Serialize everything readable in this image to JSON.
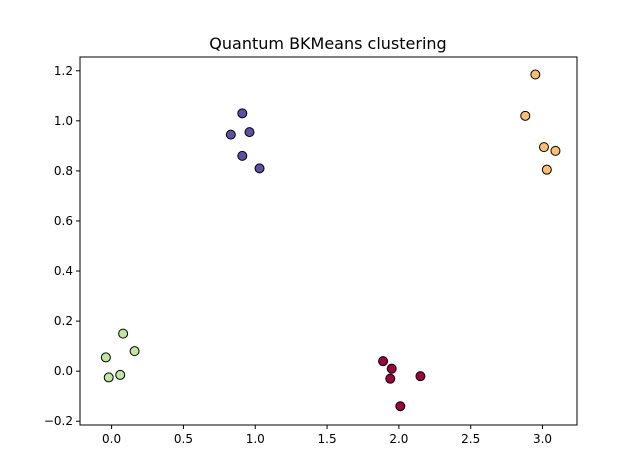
{
  "chart_data": {
    "type": "scatter",
    "title": "Quantum BKMeans clustering",
    "xlabel": "",
    "ylabel": "",
    "xlim": [
      -0.22,
      3.24
    ],
    "ylim": [
      -0.215,
      1.255
    ],
    "grid": false,
    "xticks": [
      0.0,
      0.5,
      1.0,
      1.5,
      2.0,
      2.5,
      3.0
    ],
    "xtick_labels": [
      "0.0",
      "0.5",
      "1.0",
      "1.5",
      "2.0",
      "2.5",
      "3.0"
    ],
    "yticks": [
      -0.2,
      0.0,
      0.2,
      0.4,
      0.6,
      0.8,
      1.0,
      1.2
    ],
    "ytick_labels": [
      "−0.2",
      "0.0",
      "0.2",
      "0.4",
      "0.6",
      "0.8",
      "1.0",
      "1.2"
    ],
    "series": [
      {
        "color": "#9e0142",
        "points": [
          [
            1.89,
            0.04
          ],
          [
            1.95,
            0.01
          ],
          [
            1.94,
            -0.03
          ],
          [
            2.15,
            -0.02
          ],
          [
            2.01,
            -0.14
          ]
        ]
      },
      {
        "color": "#5e4fa2",
        "points": [
          [
            0.91,
            1.03
          ],
          [
            0.83,
            0.945
          ],
          [
            0.96,
            0.955
          ],
          [
            0.91,
            0.86
          ],
          [
            1.03,
            0.81
          ]
        ]
      },
      {
        "color": "#bfe5a0",
        "points": [
          [
            0.08,
            0.15
          ],
          [
            0.16,
            0.08
          ],
          [
            -0.04,
            0.055
          ],
          [
            -0.02,
            -0.025
          ],
          [
            0.06,
            -0.015
          ]
        ]
      },
      {
        "color": "#fdbf6f",
        "points": [
          [
            2.95,
            1.185
          ],
          [
            2.88,
            1.02
          ],
          [
            3.01,
            0.895
          ],
          [
            3.09,
            0.88
          ],
          [
            3.03,
            0.805
          ]
        ]
      }
    ]
  }
}
